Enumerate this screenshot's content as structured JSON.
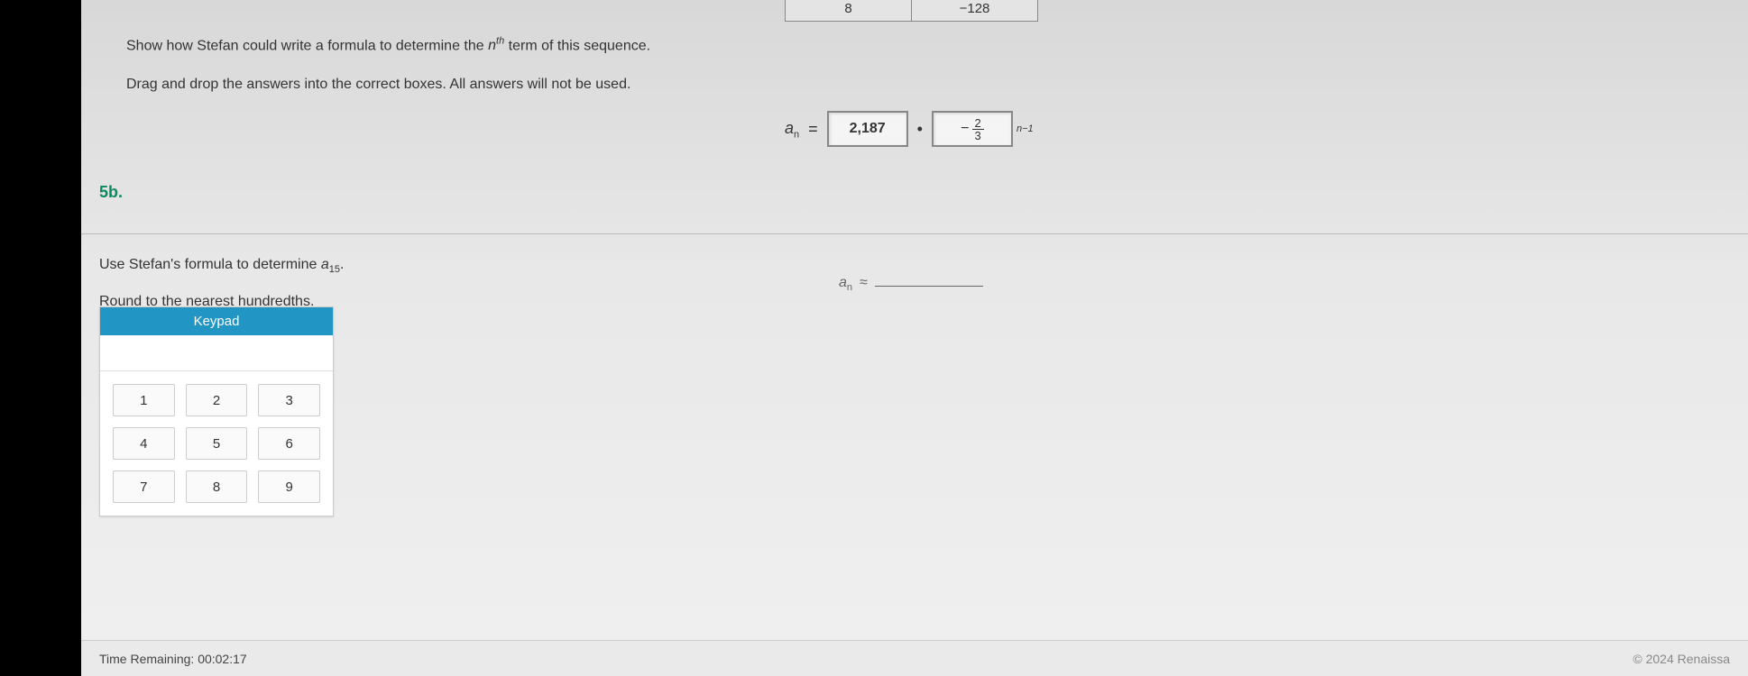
{
  "table_fragment": {
    "left_cell": "8",
    "right_cell": "−128"
  },
  "instructions": {
    "line1_a": "Show how Stefan could write a formula to determine the ",
    "line1_b": " term of this sequence.",
    "nth_base": "n",
    "nth_exp": "th",
    "line2": "Drag and drop the answers into the correct boxes. All answers will not be used."
  },
  "formula": {
    "lhs_base": "a",
    "lhs_sub": "n",
    "equals": "=",
    "box1": "2,187",
    "dot": "•",
    "box2_neg": "−",
    "box2_num": "2",
    "box2_den": "3",
    "exp": "n−1"
  },
  "question5b": {
    "label": "5b.",
    "text1_a": "Use Stefan's formula to determine ",
    "text1_base": "a",
    "text1_sub": "15",
    "text1_b": ".",
    "text2": "Round to the nearest hundredths.",
    "answer_base": "a",
    "answer_sub": "n",
    "answer_approx": "≈"
  },
  "keypad": {
    "title": "Keypad",
    "keys": [
      "1",
      "2",
      "3",
      "4",
      "5",
      "6",
      "7",
      "8",
      "9"
    ]
  },
  "footer": {
    "time_label": "Time Remaining: ",
    "time_value": "00:02:17",
    "copyright": "© 2024 Renaissa"
  }
}
